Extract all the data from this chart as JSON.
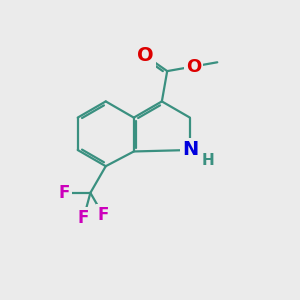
{
  "bg_color": "#ebebeb",
  "bond_color": "#3a9080",
  "bond_width": 1.6,
  "atom_colors": {
    "O": "#dd0000",
    "N": "#0000dd",
    "F": "#cc00bb",
    "C": "#3a9080",
    "H": "#3a9080"
  }
}
